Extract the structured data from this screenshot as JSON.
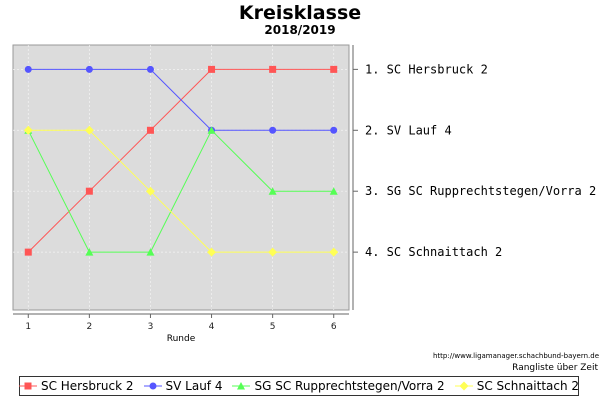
{
  "chart_data": {
    "type": "line",
    "title": "Kreisklasse",
    "subtitle": "2018/2019",
    "xlabel": "Runde",
    "ylabel": "",
    "x": [
      1,
      2,
      3,
      4,
      5,
      6
    ],
    "ylim": [
      1,
      4
    ],
    "y_inverted": true,
    "grid": true,
    "legend_position": "bottom",
    "right_labels": [
      "1. SC Hersbruck 2",
      "2. SV Lauf 4",
      "3. SG SC Rupprechtstegen/Vorra 2",
      "4. SC Schnaittach 2"
    ],
    "series": [
      {
        "name": "SC Hersbruck 2",
        "color": "#ff5555",
        "marker": "square",
        "values": [
          4,
          3,
          2,
          1,
          1,
          1
        ]
      },
      {
        "name": "SV Lauf 4",
        "color": "#5555ff",
        "marker": "circle",
        "values": [
          1,
          1,
          1,
          2,
          2,
          2
        ]
      },
      {
        "name": "SG SC Rupprechtstegen/Vorra 2",
        "color": "#55ff55",
        "marker": "triangle",
        "values": [
          2,
          4,
          4,
          2,
          3,
          3
        ]
      },
      {
        "name": "SC Schnaittach 2",
        "color": "#ffff55",
        "marker": "diamond",
        "values": [
          2,
          2,
          3,
          4,
          4,
          4
        ]
      }
    ]
  },
  "footer": {
    "credit": "http://www.ligamanager.schachbund-bayern.de",
    "caption": "Rangliste über Zeit"
  }
}
